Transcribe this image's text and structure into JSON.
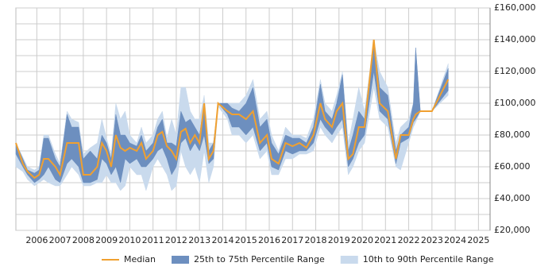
{
  "chart_data": {
    "type": "line",
    "x": [
      2005.1,
      2005.4,
      2005.6,
      2005.9,
      2006.1,
      2006.3,
      2006.5,
      2006.8,
      2007.0,
      2007.3,
      2007.5,
      2007.8,
      2008.0,
      2008.3,
      2008.6,
      2008.8,
      2009.0,
      2009.2,
      2009.4,
      2009.6,
      2009.8,
      2010.0,
      2010.3,
      2010.5,
      2010.7,
      2011.0,
      2011.2,
      2011.4,
      2011.6,
      2011.8,
      2012.0,
      2012.2,
      2012.4,
      2012.6,
      2012.8,
      2013.0,
      2013.2,
      2013.4,
      2013.6,
      2013.8,
      2014.2,
      2014.4,
      2014.7,
      2015.0,
      2015.3,
      2015.6,
      2015.9,
      2016.1,
      2016.4,
      2016.7,
      2017.0,
      2017.3,
      2017.6,
      2017.9,
      2018.2,
      2018.4,
      2018.7,
      2018.9,
      2019.15,
      2019.4,
      2019.6,
      2019.85,
      2020.1,
      2020.5,
      2020.75,
      2021.1,
      2021.45,
      2021.65,
      2022.0,
      2022.2,
      2022.3,
      2022.5,
      2023.0,
      2023.7
    ],
    "series": [
      {
        "name": "Median",
        "color": "#f0a030",
        "values": [
          75000,
          62000,
          57000,
          53000,
          55000,
          65000,
          65000,
          60000,
          55000,
          75000,
          75000,
          75000,
          55000,
          55000,
          60000,
          75000,
          70000,
          60000,
          80000,
          72000,
          70000,
          72000,
          70000,
          75000,
          65000,
          70000,
          80000,
          82000,
          73000,
          70000,
          65000,
          82000,
          84000,
          75000,
          80000,
          75000,
          100000,
          65000,
          70000,
          100000,
          95000,
          93000,
          93000,
          90000,
          95000,
          75000,
          80000,
          65000,
          62000,
          75000,
          73000,
          75000,
          72000,
          80000,
          100000,
          90000,
          85000,
          95000,
          100000,
          65000,
          68000,
          85000,
          85000,
          140000,
          100000,
          95000,
          65000,
          80000,
          80000,
          90000,
          93000,
          95000,
          95000,
          115000
        ]
      }
    ],
    "bands": [
      {
        "name": "10th to 90th Percentile Range",
        "color": "#c9daed",
        "lower": [
          60000,
          57000,
          52000,
          48000,
          50000,
          52000,
          50000,
          48000,
          48000,
          55000,
          60000,
          55000,
          48000,
          48000,
          50000,
          50000,
          55000,
          50000,
          50000,
          45000,
          48000,
          60000,
          55000,
          55000,
          45000,
          60000,
          65000,
          60000,
          55000,
          45000,
          48000,
          70000,
          60000,
          55000,
          60000,
          50000,
          70000,
          50000,
          60000,
          98000,
          90000,
          80000,
          80000,
          75000,
          80000,
          65000,
          70000,
          55000,
          55000,
          65000,
          65000,
          68000,
          68000,
          70000,
          85000,
          80000,
          75000,
          80000,
          85000,
          55000,
          60000,
          70000,
          75000,
          110000,
          90000,
          85000,
          60000,
          58000,
          75000,
          85000,
          88000,
          95000,
          95000,
          105000
        ],
        "upper": [
          75000,
          66000,
          60000,
          58000,
          60000,
          80000,
          80000,
          68000,
          62000,
          95000,
          90000,
          88000,
          68000,
          72000,
          75000,
          90000,
          78000,
          68000,
          100000,
          90000,
          95000,
          80000,
          75000,
          85000,
          75000,
          80000,
          90000,
          95000,
          78000,
          90000,
          80000,
          110000,
          110000,
          95000,
          90000,
          90000,
          105000,
          75000,
          75000,
          100000,
          100000,
          100000,
          100000,
          105000,
          115000,
          90000,
          95000,
          80000,
          70000,
          85000,
          80000,
          80000,
          78000,
          90000,
          115000,
          100000,
          95000,
          105000,
          120000,
          75000,
          90000,
          110000,
          95000,
          140000,
          120000,
          110000,
          75000,
          85000,
          90000,
          100000,
          135000,
          95000,
          95000,
          125000
        ]
      },
      {
        "name": "25th to 75th Percentile Range",
        "color": "#6d8fbf",
        "lower": [
          68000,
          60000,
          55000,
          50000,
          52000,
          55000,
          60000,
          52000,
          50000,
          62000,
          65000,
          60000,
          50000,
          50000,
          52000,
          65000,
          62000,
          55000,
          60000,
          50000,
          65000,
          62000,
          65000,
          60000,
          60000,
          65000,
          70000,
          72000,
          65000,
          55000,
          60000,
          75000,
          78000,
          70000,
          75000,
          70000,
          80000,
          62000,
          65000,
          100000,
          93000,
          85000,
          85000,
          80000,
          85000,
          70000,
          75000,
          60000,
          58000,
          70000,
          68000,
          70000,
          70000,
          75000,
          90000,
          85000,
          80000,
          85000,
          90000,
          60000,
          65000,
          75000,
          80000,
          120000,
          95000,
          90000,
          62000,
          75000,
          78000,
          88000,
          90000,
          95000,
          95000,
          108000
        ],
        "upper": [
          75000,
          65000,
          58000,
          56000,
          58000,
          78000,
          78000,
          65000,
          60000,
          93000,
          85000,
          85000,
          65000,
          70000,
          65000,
          80000,
          75000,
          65000,
          93000,
          80000,
          80000,
          75000,
          73000,
          80000,
          70000,
          75000,
          85000,
          90000,
          75000,
          75000,
          73000,
          95000,
          88000,
          90000,
          85000,
          80000,
          100000,
          70000,
          75000,
          100000,
          100000,
          97000,
          95000,
          100000,
          110000,
          85000,
          90000,
          75000,
          68000,
          80000,
          78000,
          78000,
          75000,
          85000,
          112000,
          95000,
          90000,
          100000,
          118000,
          70000,
          80000,
          95000,
          90000,
          140000,
          110000,
          105000,
          70000,
          80000,
          85000,
          100000,
          135000,
          95000,
          95000,
          122000
        ]
      }
    ],
    "xlim": [
      2005.1,
      2025.5
    ],
    "xticks": [
      2006,
      2007,
      2008,
      2009,
      2010,
      2011,
      2012,
      2013,
      2014,
      2015,
      2016,
      2017,
      2018,
      2019,
      2020,
      2021,
      2022,
      2023,
      2024,
      2025
    ],
    "ylim": [
      20000,
      160000
    ],
    "yticks": [
      {
        "value": 20000,
        "label": "£20,000"
      },
      {
        "value": 40000,
        "label": "£40,000"
      },
      {
        "value": 60000,
        "label": "£60,000"
      },
      {
        "value": 80000,
        "label": "£80,000"
      },
      {
        "value": 100000,
        "label": "£100,000"
      },
      {
        "value": 120000,
        "label": "£120,000"
      },
      {
        "value": 140000,
        "label": "£140,000"
      },
      {
        "value": 160000,
        "label": "£160,000"
      }
    ],
    "yminor": [
      30000,
      50000,
      70000,
      90000,
      110000,
      130000,
      150000
    ],
    "grid": true
  }
}
